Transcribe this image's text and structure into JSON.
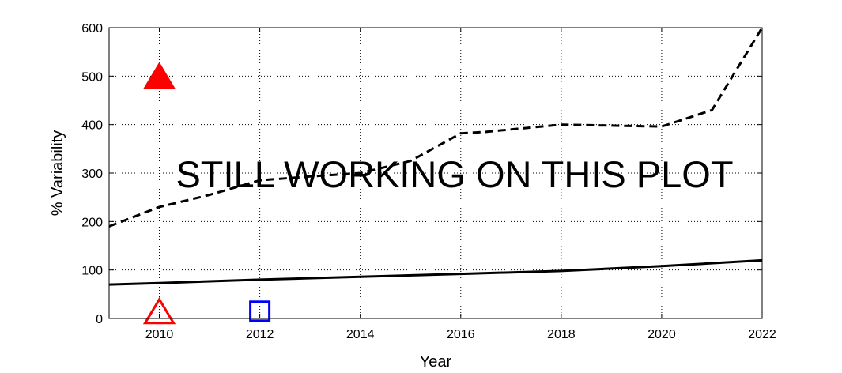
{
  "chart_data": {
    "type": "line",
    "xlabel": "Year",
    "ylabel": "% Variability",
    "xlim": [
      2009,
      2022
    ],
    "ylim": [
      0,
      600
    ],
    "x_ticks": [
      2010,
      2012,
      2014,
      2016,
      2018,
      2020,
      2022
    ],
    "y_ticks": [
      0,
      100,
      200,
      300,
      400,
      500,
      600
    ],
    "grid": true,
    "annotation": "STILL WORKING ON THIS PLOT",
    "series": [
      {
        "style": "dashed",
        "color": "#000000",
        "x": [
          2009,
          2010,
          2011,
          2012,
          2013,
          2014,
          2015,
          2016,
          2016.5,
          2017,
          2018,
          2019,
          2020,
          2021,
          2022
        ],
        "y": [
          190,
          230,
          255,
          285,
          293,
          300,
          325,
          382,
          385,
          390,
          400,
          398,
          396,
          430,
          600
        ]
      },
      {
        "style": "solid",
        "color": "#000000",
        "x": [
          2009,
          2010,
          2012,
          2014,
          2016,
          2018,
          2020,
          2022
        ],
        "y": [
          70,
          73,
          80,
          86,
          92,
          98,
          108,
          120
        ]
      }
    ],
    "markers": [
      {
        "shape": "triangle",
        "fill": true,
        "color": "#ff0000",
        "x": 2010,
        "y": 500
      },
      {
        "shape": "triangle",
        "fill": false,
        "color": "#ff0000",
        "x": 2010,
        "y": 15
      },
      {
        "shape": "square",
        "fill": false,
        "color": "#0000ff",
        "x": 2012,
        "y": 15
      }
    ]
  }
}
